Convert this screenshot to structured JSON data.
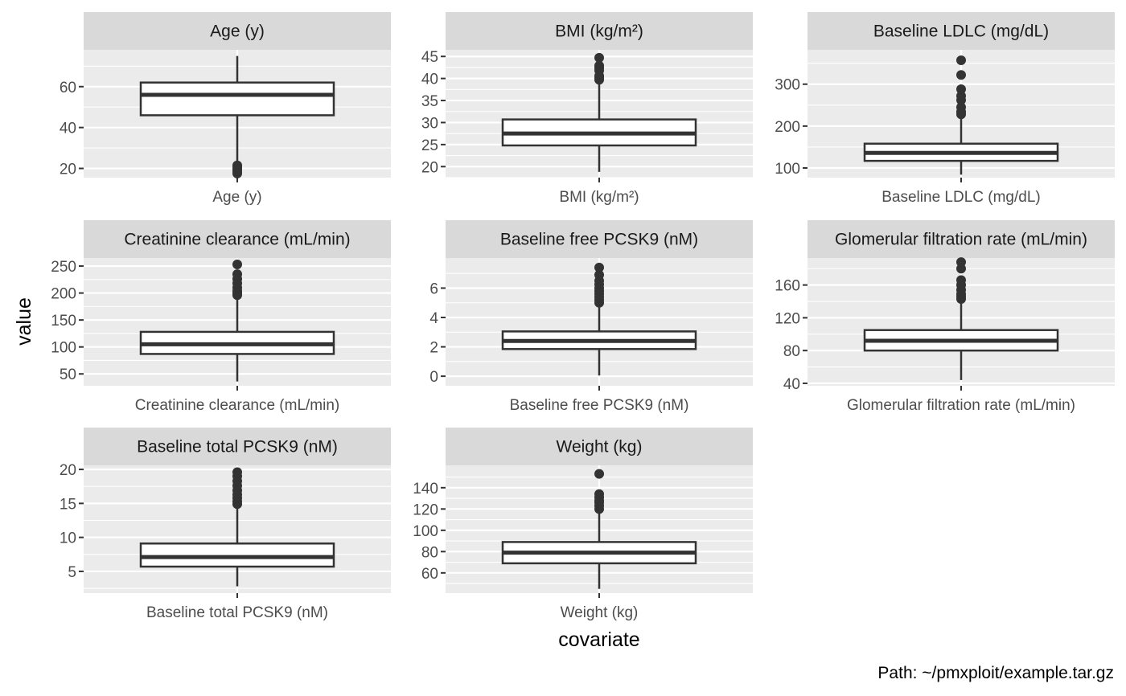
{
  "chart_data": {
    "type": "box",
    "xlabel": "covariate",
    "ylabel": "value",
    "caption": "Path: ~/pmxploit/example.tar.gz",
    "panels": [
      {
        "title": "Age (y)",
        "x_tick": "Age (y)",
        "ylim": [
          15.5,
          78
        ],
        "y_ticks": [
          20,
          40,
          60
        ],
        "box": {
          "min": 23,
          "q1": 46,
          "median": 56,
          "q3": 62,
          "max": 75
        },
        "outliers": [
          17.5,
          18.5,
          19.5,
          20.5,
          21.5
        ]
      },
      {
        "title": "BMI (kg/m²)",
        "x_tick": "BMI (kg/m²)",
        "ylim": [
          17.5,
          46.5
        ],
        "y_ticks": [
          20,
          25,
          30,
          35,
          40,
          45
        ],
        "box": {
          "min": 18.8,
          "q1": 24.8,
          "median": 27.5,
          "q3": 30.7,
          "max": 39.3
        },
        "outliers": [
          39.7,
          40.2,
          40.6,
          41.8,
          42.4,
          42.9,
          44.7
        ]
      },
      {
        "title": "Baseline LDLC (mg/dL)",
        "x_tick": "Baseline LDLC (mg/dL)",
        "ylim": [
          77,
          382
        ],
        "y_ticks": [
          100,
          200,
          300
        ],
        "box": {
          "min": 84,
          "q1": 117,
          "median": 136,
          "q3": 158,
          "max": 222
        },
        "outliers": [
          228,
          234,
          245,
          262,
          272,
          288,
          322,
          357
        ]
      },
      {
        "title": "Creatinine clearance (mL/min)",
        "x_tick": "Creatinine clearance (mL/min)",
        "ylim": [
          28,
          265
        ],
        "y_ticks": [
          50,
          100,
          150,
          200,
          250
        ],
        "box": {
          "min": 36,
          "q1": 87,
          "median": 105,
          "q3": 128,
          "max": 190
        },
        "outliers": [
          196,
          200,
          204,
          210,
          218,
          226,
          235,
          253
        ]
      },
      {
        "title": "Baseline free PCSK9 (nM)",
        "x_tick": "Baseline free PCSK9 (nM)",
        "ylim": [
          -0.65,
          8.05
        ],
        "y_ticks": [
          0,
          2,
          4,
          6
        ],
        "box": {
          "min": 0.05,
          "q1": 1.85,
          "median": 2.4,
          "q3": 3.05,
          "max": 4.8
        },
        "outliers": [
          5.0,
          5.2,
          5.4,
          5.6,
          5.8,
          6.0,
          6.25,
          6.5,
          6.9,
          7.4
        ]
      },
      {
        "title": "Glomerular filtration rate (mL/min)",
        "x_tick": "Glomerular filtration rate (mL/min)",
        "ylim": [
          37,
          193
        ],
        "y_ticks": [
          40,
          80,
          120,
          160
        ],
        "box": {
          "min": 44,
          "q1": 80,
          "median": 92,
          "q3": 105,
          "max": 140
        },
        "outliers": [
          143,
          146,
          149,
          154,
          160,
          166,
          180,
          188
        ]
      },
      {
        "title": "Baseline total PCSK9 (nM)",
        "x_tick": "Baseline total PCSK9 (nM)",
        "ylim": [
          1.8,
          20.6
        ],
        "y_ticks": [
          5,
          10,
          15,
          20
        ],
        "box": {
          "min": 2.8,
          "q1": 5.7,
          "median": 7.1,
          "q3": 9.1,
          "max": 14.5
        },
        "outliers": [
          14.9,
          15.3,
          15.8,
          16.3,
          16.9,
          17.6,
          18.3,
          19.0,
          19.6
        ]
      },
      {
        "title": "Weight (kg)",
        "x_tick": "Weight (kg)",
        "ylim": [
          41,
          161
        ],
        "y_ticks": [
          60,
          80,
          100,
          120,
          140
        ],
        "box": {
          "min": 45,
          "q1": 69,
          "median": 79,
          "q3": 89,
          "max": 117
        },
        "outliers": [
          120,
          123,
          126,
          128,
          131,
          134,
          153
        ]
      }
    ]
  }
}
